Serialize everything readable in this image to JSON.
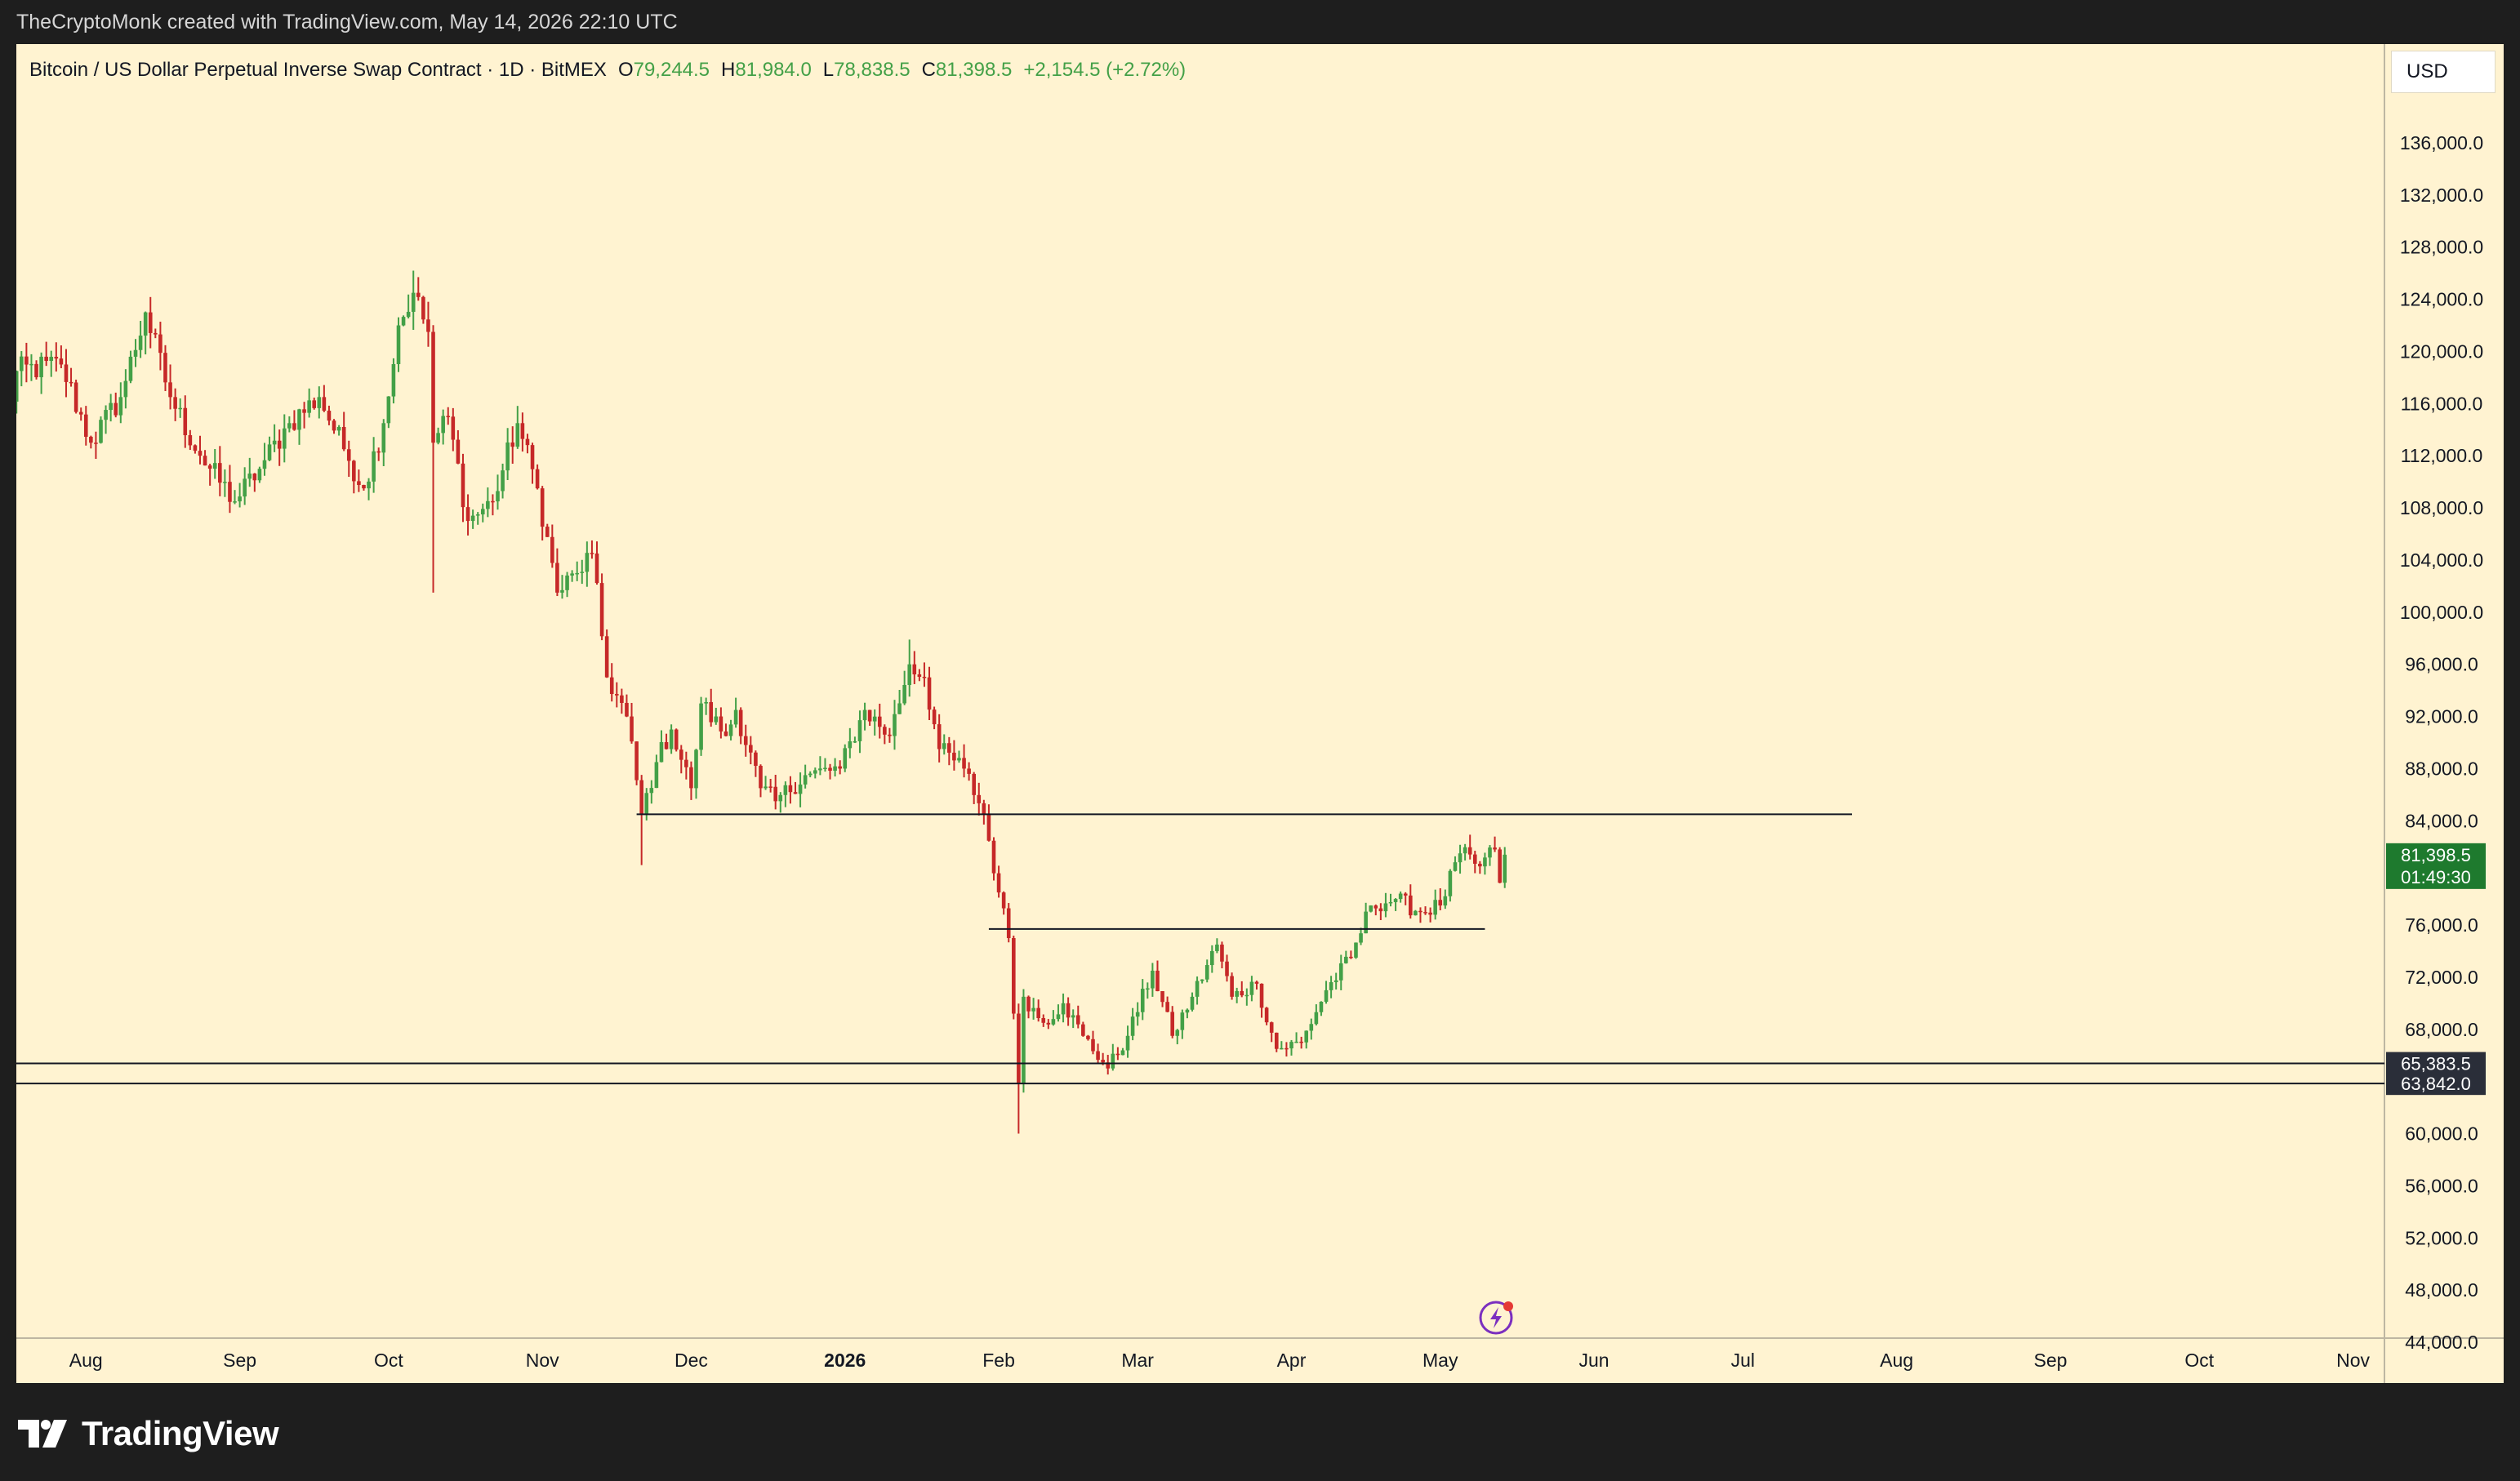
{
  "header": {
    "attribution": "TheCryptoMonk created with TradingView.com, May 14, 2026 22:10 UTC"
  },
  "legend": {
    "symbol_title": "Bitcoin / US Dollar Perpetual Inverse Swap Contract · 1D · BitMEX",
    "open_label": "O",
    "open_value": "79,244.5",
    "high_label": "H",
    "high_value": "81,984.0",
    "low_label": "L",
    "low_value": "78,838.5",
    "close_label": "C",
    "close_value": "81,398.5",
    "change_value": "+2,154.5 (+2.72%)"
  },
  "currency": {
    "label": "USD"
  },
  "footer": {
    "brand": "TradingView"
  },
  "colors": {
    "background": "#fff3d1",
    "up": "#43a047",
    "down": "#c62828",
    "level_line": "#131722",
    "price_badge": "#1e7a2e",
    "level_badge": "#2a2e39"
  },
  "chart_data": {
    "type": "candlestick",
    "symbol": "Bitcoin / US Dollar Perpetual Inverse Swap Contract",
    "interval": "1D",
    "exchange": "BitMEX",
    "ylim": [
      43000,
      142000
    ],
    "y_ticks": [
      "136,000.0",
      "132,000.0",
      "128,000.0",
      "124,000.0",
      "120,000.0",
      "116,000.0",
      "112,000.0",
      "108,000.0",
      "104,000.0",
      "100,000.0",
      "96,000.0",
      "92,000.0",
      "88,000.0",
      "84,000.0",
      "80,000.0",
      "76,000.0",
      "72,000.0",
      "68,000.0",
      "64,000.0",
      "60,000.0",
      "56,000.0",
      "52,000.0",
      "48,000.0",
      "44,000.0"
    ],
    "x_ticks": [
      "Aug",
      "Sep",
      "Oct",
      "Nov",
      "Dec",
      "2026",
      "Feb",
      "Mar",
      "Apr",
      "May",
      "Jun",
      "Jul",
      "Aug",
      "Sep",
      "Oct",
      "Nov"
    ],
    "x_ticks_bold": [
      "2026"
    ],
    "price_badge": {
      "value": 81398.5,
      "label": "81,398.5",
      "countdown": "01:49:30"
    },
    "level_badges": [
      {
        "value": 65383.5,
        "label": "65,383.5"
      },
      {
        "value": 63842.0,
        "label": "63,842.0"
      }
    ],
    "horizontal_levels": [
      {
        "price": 84500,
        "from_date": "2025-11-20",
        "to_date": "2026-07-23"
      },
      {
        "price": 75700,
        "from_date": "2026-01-30",
        "to_date": "2026-05-10"
      },
      {
        "price": 65383.5,
        "from_date": "full",
        "to_date": "full"
      },
      {
        "price": 63842.0,
        "from_date": "full",
        "to_date": "full"
      }
    ],
    "ohlc_anchors": [
      {
        "date": "2025-07-14",
        "close": 108000
      },
      {
        "date": "2025-07-18",
        "close": 118500
      },
      {
        "date": "2025-07-27",
        "close": 119000
      },
      {
        "date": "2025-08-02",
        "close": 113000
      },
      {
        "date": "2025-08-08",
        "close": 116500
      },
      {
        "date": "2025-08-13",
        "close": 123000
      },
      {
        "date": "2025-08-18",
        "close": 116500
      },
      {
        "date": "2025-08-24",
        "close": 112000
      },
      {
        "date": "2025-08-31",
        "close": 108500
      },
      {
        "date": "2025-09-05",
        "close": 111000
      },
      {
        "date": "2025-09-11",
        "close": 114500
      },
      {
        "date": "2025-09-17",
        "close": 116500
      },
      {
        "date": "2025-09-22",
        "close": 112500
      },
      {
        "date": "2025-09-26",
        "close": 109500
      },
      {
        "date": "2025-09-30",
        "close": 114500
      },
      {
        "date": "2025-10-03",
        "close": 122000
      },
      {
        "date": "2025-10-06",
        "close": 124500
      },
      {
        "date": "2025-10-09",
        "close": 121500
      },
      {
        "date": "2025-10-10",
        "close": 113000
      },
      {
        "date": "2025-10-13",
        "close": 115000
      },
      {
        "date": "2025-10-17",
        "close": 107000
      },
      {
        "date": "2025-10-22",
        "close": 108500
      },
      {
        "date": "2025-10-27",
        "close": 114500
      },
      {
        "date": "2025-10-31",
        "close": 109500
      },
      {
        "date": "2025-11-04",
        "close": 101500
      },
      {
        "date": "2025-11-08",
        "close": 103000
      },
      {
        "date": "2025-11-11",
        "close": 104500
      },
      {
        "date": "2025-11-14",
        "close": 95000
      },
      {
        "date": "2025-11-18",
        "close": 92000
      },
      {
        "date": "2025-11-21",
        "close": 84500
      },
      {
        "date": "2025-11-24",
        "close": 88500
      },
      {
        "date": "2025-11-27",
        "close": 91000
      },
      {
        "date": "2025-12-01",
        "close": 86500
      },
      {
        "date": "2025-12-03",
        "close": 93000
      },
      {
        "date": "2025-12-08",
        "close": 90500
      },
      {
        "date": "2025-12-10",
        "close": 92500
      },
      {
        "date": "2025-12-15",
        "close": 86500
      },
      {
        "date": "2025-12-18",
        "close": 85500
      },
      {
        "date": "2025-12-24",
        "close": 87500
      },
      {
        "date": "2025-12-31",
        "close": 88000
      },
      {
        "date": "2026-01-05",
        "close": 92500
      },
      {
        "date": "2026-01-10",
        "close": 90500
      },
      {
        "date": "2026-01-14",
        "close": 96000
      },
      {
        "date": "2026-01-17",
        "close": 95000
      },
      {
        "date": "2026-01-20",
        "close": 89500
      },
      {
        "date": "2026-01-25",
        "close": 88000
      },
      {
        "date": "2026-01-29",
        "close": 84500
      },
      {
        "date": "2026-02-01",
        "close": 78500
      },
      {
        "date": "2026-02-03",
        "close": 75000
      },
      {
        "date": "2026-02-05",
        "close": 63800
      },
      {
        "date": "2026-02-06",
        "close": 70500
      },
      {
        "date": "2026-02-10",
        "close": 68500
      },
      {
        "date": "2026-02-14",
        "close": 70000
      },
      {
        "date": "2026-02-18",
        "close": 67500
      },
      {
        "date": "2026-02-23",
        "close": 65000
      },
      {
        "date": "2026-02-27",
        "close": 67500
      },
      {
        "date": "2026-03-04",
        "close": 72500
      },
      {
        "date": "2026-03-08",
        "close": 67500
      },
      {
        "date": "2026-03-12",
        "close": 70500
      },
      {
        "date": "2026-03-17",
        "close": 74500
      },
      {
        "date": "2026-03-20",
        "close": 70500
      },
      {
        "date": "2026-03-25",
        "close": 71500
      },
      {
        "date": "2026-03-29",
        "close": 66500
      },
      {
        "date": "2026-04-03",
        "close": 67000
      },
      {
        "date": "2026-04-08",
        "close": 71000
      },
      {
        "date": "2026-04-13",
        "close": 73500
      },
      {
        "date": "2026-04-17",
        "close": 77500
      },
      {
        "date": "2026-04-22",
        "close": 78000
      },
      {
        "date": "2026-04-27",
        "close": 77000
      },
      {
        "date": "2026-05-01",
        "close": 77500
      },
      {
        "date": "2026-05-05",
        "close": 81500
      },
      {
        "date": "2026-05-09",
        "close": 80500
      },
      {
        "date": "2026-05-12",
        "close": 81800
      },
      {
        "date": "2026-05-13",
        "close": 79244.5
      },
      {
        "date": "2026-05-14",
        "open": 79244.5,
        "high": 81984.0,
        "low": 78838.5,
        "close": 81398.5
      }
    ],
    "annotations": [
      {
        "date": "2025-10-10",
        "low": 101500
      },
      {
        "date": "2025-11-21",
        "low": 80600
      },
      {
        "date": "2026-02-05",
        "low": 60000
      },
      {
        "date": "2026-01-14",
        "high": 97900
      },
      {
        "date": "2025-10-06",
        "high": 126200
      }
    ]
  }
}
